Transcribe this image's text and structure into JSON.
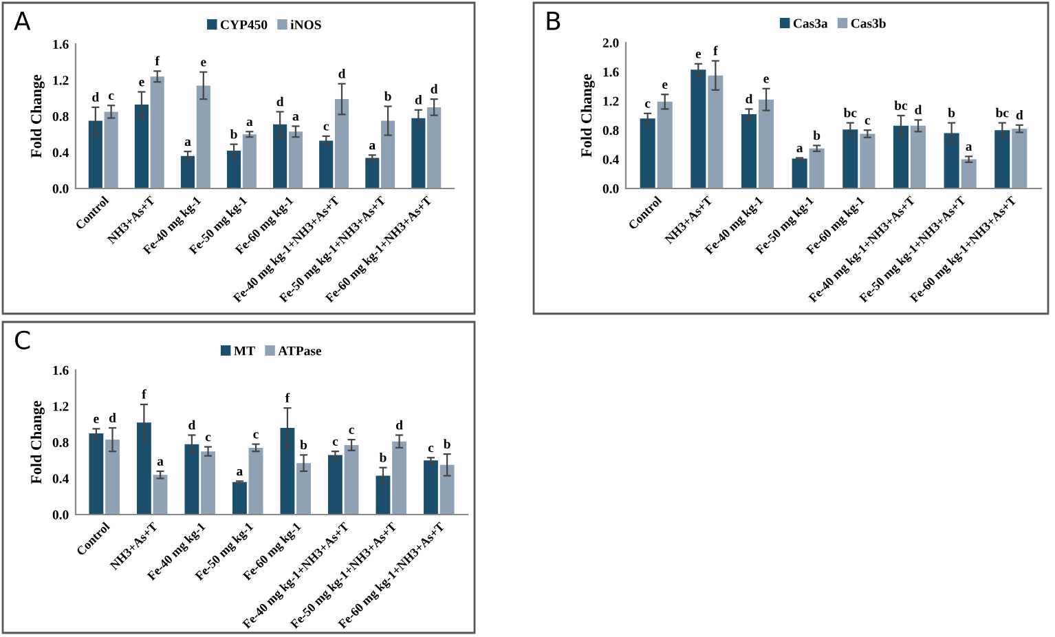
{
  "chart_data": [
    {
      "type": "bar",
      "title": "A",
      "ylabel": "Fold Change",
      "categories": [
        "Control",
        "NH3+As+T",
        "Fe-40 mg kg-1",
        "Fe-50 mg kg-1",
        "Fe-60 mg kg-1",
        "Fe-40 mg kg-1+NH3+As+T",
        "Fe-50 mg kg-1+NH3+As+T",
        "Fe-60 mg kg-1+NH3+As+T"
      ],
      "ylim": [
        0,
        1.6
      ],
      "yticks": [
        {
          "value": 0,
          "label": "0.0"
        },
        {
          "value": 0.4,
          "label": "0.4"
        },
        {
          "value": 0.8,
          "label": "0.8"
        },
        {
          "value": 1.2,
          "label": "1.2"
        },
        {
          "value": 1.6,
          "label": "1.6"
        }
      ],
      "legend": "top",
      "grid": false,
      "series": [
        {
          "name": "CYP450",
          "color": "#1b4f6e",
          "values": [
            0.75,
            0.93,
            0.36,
            0.42,
            0.71,
            0.53,
            0.34,
            0.78
          ],
          "errors": [
            0.15,
            0.14,
            0.05,
            0.07,
            0.14,
            0.05,
            0.03,
            0.09
          ],
          "value_labels": [
            "d",
            "e",
            "a",
            "b",
            "d",
            "c",
            "a",
            "d"
          ]
        },
        {
          "name": "iNOS",
          "color": "#8ea1b5",
          "values": [
            0.85,
            1.24,
            1.14,
            0.6,
            0.63,
            0.99,
            0.75,
            0.9
          ],
          "errors": [
            0.07,
            0.06,
            0.15,
            0.03,
            0.06,
            0.17,
            0.16,
            0.09
          ],
          "value_labels": [
            "c",
            "f",
            "e",
            "a",
            "a",
            "d",
            "b",
            "d"
          ]
        }
      ]
    },
    {
      "type": "bar",
      "title": "B",
      "ylabel": "Fold Change",
      "categories": [
        "Control",
        "NH3+As+T",
        "Fe-40 mg kg-1",
        "Fe-50 mg kg-1",
        "Fe-60 mg kg-1",
        "Fe-40 mg kg-1+NH3+As+T",
        "Fe-50 mg kg-1+NH3+As+T",
        "Fe-60 mg kg-1+NH3+As+T"
      ],
      "ylim": [
        0,
        2.0
      ],
      "yticks": [
        {
          "value": 0,
          "label": "0.0"
        },
        {
          "value": 0.4,
          "label": "0.4"
        },
        {
          "value": 0.8,
          "label": "0.8"
        },
        {
          "value": 1.2,
          "label": "1.2"
        },
        {
          "value": 1.6,
          "label": "1.6"
        },
        {
          "value": 2.0,
          "label": "2.0"
        }
      ],
      "legend": "top",
      "grid": false,
      "series": [
        {
          "name": "Cas3a",
          "color": "#1b4f6e",
          "values": [
            0.96,
            1.63,
            1.02,
            0.41,
            0.81,
            0.86,
            0.76,
            0.8
          ],
          "errors": [
            0.07,
            0.08,
            0.07,
            0.01,
            0.09,
            0.14,
            0.14,
            0.1
          ],
          "value_labels": [
            "c",
            "e",
            "d",
            "a",
            "bc",
            "bc",
            "b",
            "bc"
          ]
        },
        {
          "name": "Cas3b",
          "color": "#8ea1b5",
          "values": [
            1.19,
            1.55,
            1.22,
            0.55,
            0.75,
            0.86,
            0.4,
            0.82
          ],
          "errors": [
            0.1,
            0.2,
            0.15,
            0.04,
            0.05,
            0.08,
            0.04,
            0.05
          ],
          "value_labels": [
            "e",
            "f",
            "e",
            "b",
            "c",
            "d",
            "a",
            "d"
          ]
        }
      ]
    },
    {
      "type": "bar",
      "title": "C",
      "ylabel": "Fold Change",
      "categories": [
        "Control",
        "NH3+As+T",
        "Fe-40 mg kg-1",
        "Fe-50 mg kg-1",
        "Fe-60 mg kg-1",
        "Fe-40 mg kg-1+NH3+As+T",
        "Fe-50 mg kg-1+NH3+As+T",
        "Fe-60 mg kg-1+NH3+As+T"
      ],
      "ylim": [
        0,
        1.6
      ],
      "yticks": [
        {
          "value": 0,
          "label": "0.0"
        },
        {
          "value": 0.4,
          "label": "0.4"
        },
        {
          "value": 0.8,
          "label": "0.8"
        },
        {
          "value": 1.2,
          "label": "1.2"
        },
        {
          "value": 1.6,
          "label": "1.6"
        }
      ],
      "legend": "top",
      "grid": false,
      "series": [
        {
          "name": "MT",
          "color": "#1b4f6e",
          "values": [
            0.9,
            1.02,
            0.78,
            0.36,
            0.96,
            0.66,
            0.43,
            0.6
          ],
          "errors": [
            0.05,
            0.2,
            0.1,
            0.01,
            0.22,
            0.04,
            0.09,
            0.03
          ],
          "value_labels": [
            "e",
            "f",
            "d",
            "a",
            "f",
            "c",
            "b",
            "c"
          ]
        },
        {
          "name": "ATPase",
          "color": "#8ea1b5",
          "values": [
            0.83,
            0.44,
            0.7,
            0.74,
            0.57,
            0.77,
            0.81,
            0.55
          ],
          "errors": [
            0.13,
            0.04,
            0.05,
            0.04,
            0.09,
            0.06,
            0.07,
            0.12
          ],
          "value_labels": [
            "d",
            "a",
            "c",
            "c",
            "b",
            "c",
            "d",
            "b"
          ]
        }
      ]
    }
  ]
}
